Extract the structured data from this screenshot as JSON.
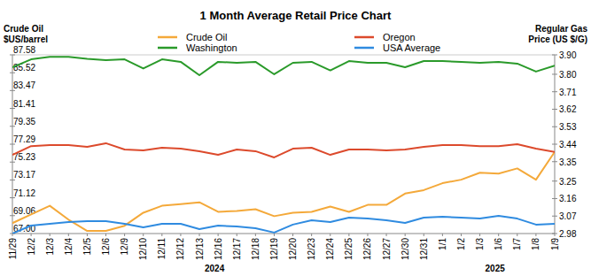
{
  "chart_data": {
    "type": "line",
    "title": "1 Month Average Retail Price Chart",
    "ylabel": [
      "Crude Oil",
      "$US/barrel"
    ],
    "y2label": [
      "Regular Gas",
      "Price (US $/G)"
    ],
    "categories": [
      "11/29",
      "12/2",
      "12/3",
      "12/4",
      "12/5",
      "12/6",
      "12/9",
      "12/10",
      "12/11",
      "12/12",
      "12/13",
      "12/16",
      "12/17",
      "12/18",
      "12/19",
      "12/20",
      "12/23",
      "12/24",
      "12/25",
      "12/26",
      "12/27",
      "12/30",
      "12/31",
      "1/1",
      "1/2",
      "1/3",
      "1/6",
      "1/7",
      "1/8",
      "1/9"
    ],
    "annotations": [
      {
        "text": "2024",
        "x": "12/16"
      },
      {
        "text": "2025",
        "x": "1/6"
      }
    ],
    "ylim": [
      67,
      87.58
    ],
    "yticks": [
      {
        "value": 67,
        "label": "67.00"
      },
      69.06,
      71.12,
      73.17,
      75.23,
      77.29,
      79.35,
      81.41,
      83.47,
      85.52,
      87.58
    ],
    "y2lim": [
      2.98,
      3.9
    ],
    "y2ticks": [
      2.98,
      3.07,
      3.16,
      3.25,
      3.35,
      3.44,
      3.53,
      3.62,
      3.71,
      {
        "value": 3.8,
        "label": "3.80"
      },
      {
        "value": 3.9,
        "label": "3.90"
      }
    ],
    "grid": false,
    "legend": "top",
    "series": [
      {
        "name": "Crude Oil",
        "color": "#f4a93a",
        "values": [
          68.2,
          69.2,
          70.2,
          68.6,
          67.3,
          67.3,
          67.9,
          69.4,
          70.2,
          70.4,
          70.6,
          69.5,
          69.6,
          69.8,
          69.0,
          69.4,
          69.5,
          70.1,
          69.5,
          70.3,
          70.3,
          71.6,
          72.0,
          72.8,
          73.2,
          74.0,
          73.9,
          74.5,
          73.2,
          76.4
        ]
      },
      {
        "name": "Washington",
        "color": "#2a9a2a",
        "axis": "y2",
        "values": [
          3.836,
          3.877,
          3.89,
          3.89,
          3.88,
          3.873,
          3.877,
          3.83,
          3.877,
          3.864,
          3.795,
          3.864,
          3.859,
          3.864,
          3.8,
          3.859,
          3.864,
          3.82,
          3.868,
          3.859,
          3.859,
          3.836,
          3.868,
          3.868,
          3.864,
          3.859,
          3.864,
          3.855,
          3.814,
          3.845
        ]
      },
      {
        "name": "Oregon",
        "color": "#dc4a2c",
        "axis": "y2",
        "values": [
          3.385,
          3.43,
          3.435,
          3.435,
          3.426,
          3.445,
          3.413,
          3.408,
          3.422,
          3.417,
          3.404,
          3.385,
          3.413,
          3.404,
          3.372,
          3.417,
          3.422,
          3.385,
          3.413,
          3.413,
          3.408,
          3.413,
          3.426,
          3.435,
          3.435,
          3.43,
          3.43,
          3.44,
          3.417,
          3.4
        ]
      },
      {
        "name": "USA Average",
        "color": "#2f8be0",
        "axis": "y2",
        "values": [
          2.98,
          3.021,
          3.03,
          3.039,
          3.044,
          3.044,
          3.03,
          3.012,
          3.03,
          3.03,
          3.003,
          3.021,
          3.016,
          3.007,
          2.985,
          3.026,
          3.048,
          3.039,
          3.062,
          3.057,
          3.048,
          3.035,
          3.062,
          3.066,
          3.062,
          3.057,
          3.071,
          3.057,
          3.026,
          3.03
        ]
      }
    ]
  }
}
